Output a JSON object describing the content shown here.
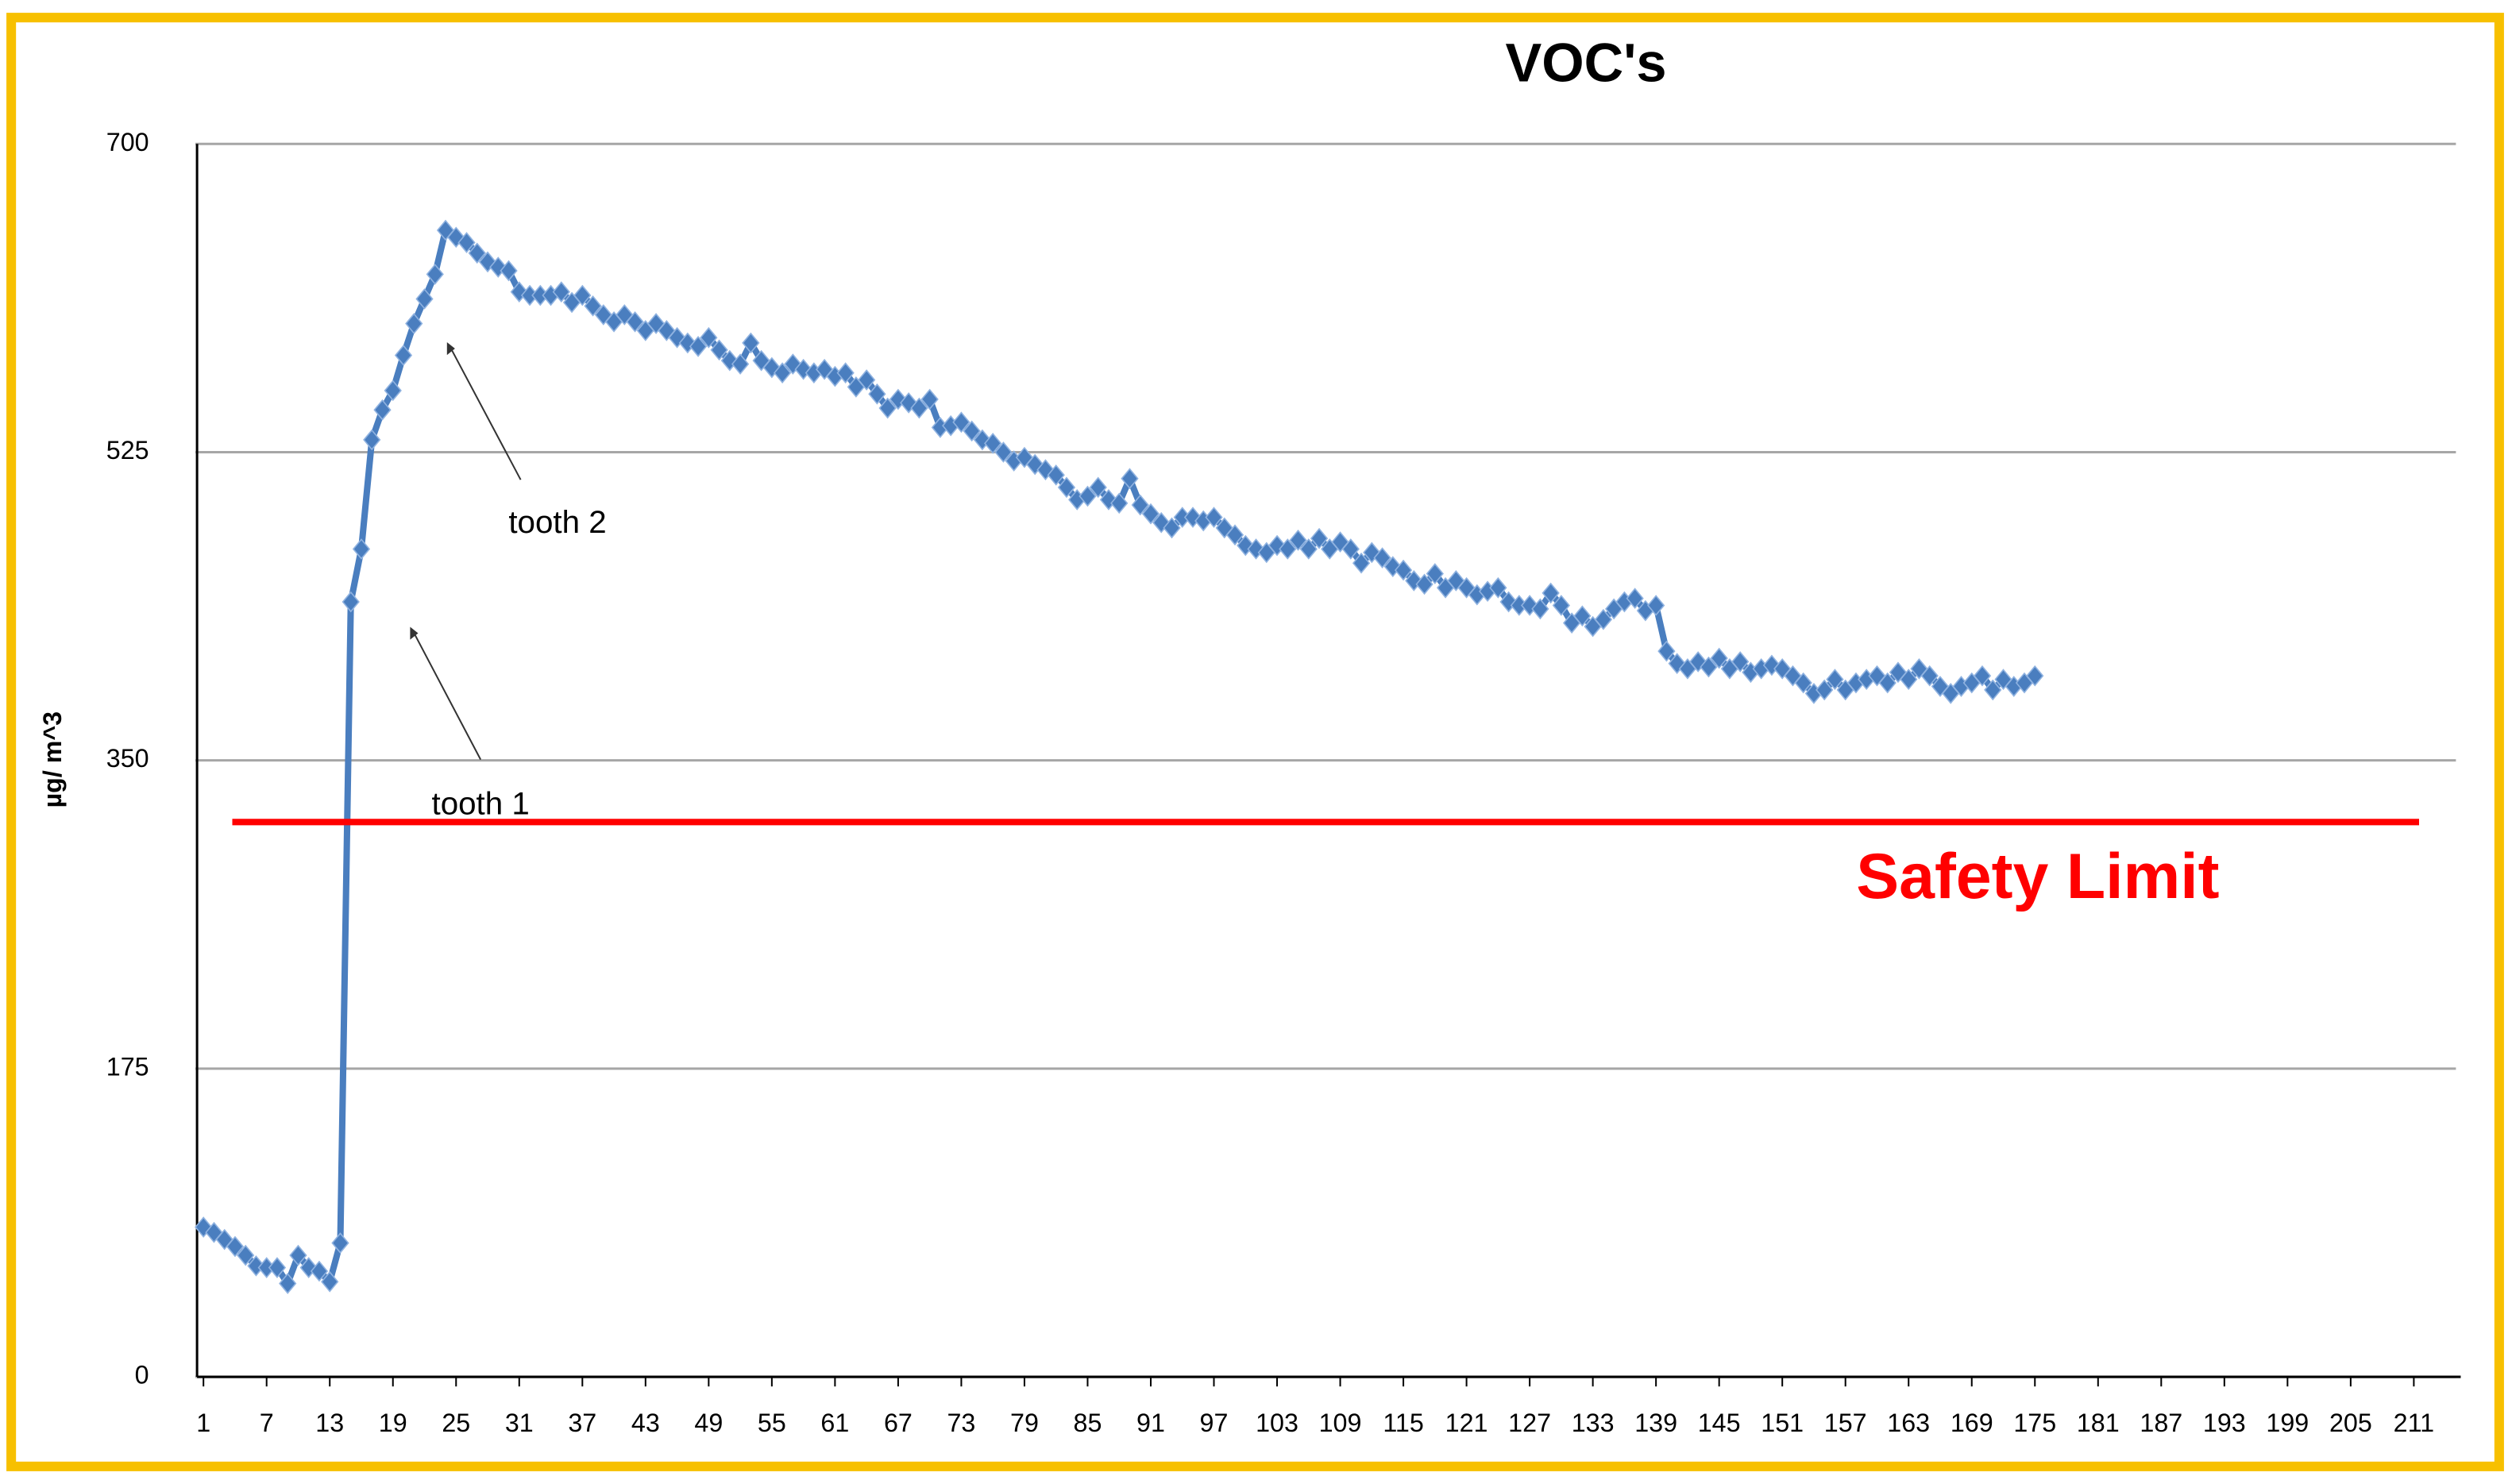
{
  "chart_data": {
    "type": "line",
    "title": "VOC's",
    "y_label": "µg/ m^3",
    "x": [
      1,
      2,
      3,
      4,
      5,
      6,
      7,
      8,
      9,
      10,
      11,
      12,
      13,
      14,
      15,
      16,
      17,
      18,
      19,
      20,
      21,
      22,
      23,
      24,
      25,
      26,
      27,
      28,
      29,
      30,
      31,
      32,
      33,
      34,
      35,
      36,
      37,
      38,
      39,
      40,
      41,
      42,
      43,
      44,
      45,
      46,
      47,
      48,
      49,
      50,
      51,
      52,
      53,
      54,
      55,
      56,
      57,
      58,
      59,
      60,
      61,
      62,
      63,
      64,
      65,
      66,
      67,
      68,
      69,
      70,
      71,
      72,
      73,
      74,
      75,
      76,
      77,
      78,
      79,
      80,
      81,
      82,
      83,
      84,
      85,
      86,
      87,
      88,
      89,
      90,
      91,
      92,
      93,
      94,
      95,
      96,
      97,
      98,
      99,
      100,
      101,
      102,
      103,
      104,
      105,
      106,
      107,
      108,
      109,
      110,
      111,
      112,
      113,
      114,
      115,
      116,
      117,
      118,
      119,
      120,
      121,
      122,
      123,
      124,
      125,
      126,
      127,
      128,
      129,
      130,
      131,
      132,
      133,
      134,
      135,
      136,
      137,
      138,
      139,
      140,
      141,
      142,
      143,
      144,
      145,
      146,
      147,
      148,
      149,
      150,
      151,
      152,
      153,
      154,
      155,
      156,
      157,
      158,
      159,
      160,
      161,
      162,
      163,
      164,
      165,
      166,
      167,
      168,
      169,
      170,
      171,
      172,
      173,
      174,
      175
    ],
    "series": [
      {
        "color": "#4a7ebf",
        "values": [
          85,
          82,
          78,
          74,
          69,
          63,
          62,
          62,
          53,
          69,
          62,
          60,
          54,
          76,
          440,
          470,
          532,
          549,
          560,
          580,
          598,
          612,
          626,
          651,
          647,
          644,
          638,
          633,
          630,
          628,
          616,
          614,
          614,
          614,
          616,
          610,
          614,
          608,
          603,
          599,
          603,
          599,
          594,
          598,
          594,
          590,
          587,
          585,
          590,
          583,
          577,
          575,
          587,
          577,
          573,
          570,
          575,
          572,
          570,
          572,
          568,
          570,
          562,
          566,
          558,
          550,
          555,
          553,
          550,
          555,
          539,
          540,
          542,
          537,
          532,
          530,
          525,
          520,
          522,
          518,
          515,
          512,
          505,
          498,
          500,
          505,
          498,
          496,
          510,
          495,
          490,
          485,
          482,
          488,
          488,
          486,
          488,
          482,
          478,
          472,
          470,
          468,
          472,
          470,
          475,
          470,
          476,
          470,
          474,
          470,
          462,
          468,
          465,
          460,
          458,
          452,
          450,
          456,
          448,
          452,
          448,
          444,
          446,
          448,
          440,
          438,
          438,
          436,
          445,
          438,
          428,
          432,
          426,
          430,
          436,
          440,
          442,
          435,
          438,
          412,
          405,
          402,
          406,
          403,
          408,
          402,
          406,
          400,
          402,
          404,
          402,
          398,
          394,
          388,
          390,
          396,
          390,
          394,
          396,
          398,
          394,
          400,
          396,
          402,
          398,
          392,
          388,
          392,
          394,
          398,
          390,
          396,
          392,
          394,
          398
        ]
      }
    ],
    "xlim": [
      1,
      215
    ],
    "xticks": [
      1,
      7,
      13,
      19,
      25,
      31,
      37,
      43,
      49,
      55,
      61,
      67,
      73,
      79,
      85,
      91,
      97,
      103,
      109,
      115,
      121,
      127,
      133,
      139,
      145,
      151,
      157,
      163,
      169,
      175,
      181,
      187,
      193,
      199,
      205,
      211
    ],
    "ylim": [
      0,
      700
    ],
    "yticks": [
      0,
      175,
      350,
      525,
      700
    ],
    "grid": true,
    "reference_line": {
      "value": 315,
      "label": "Safety Limit",
      "color": "#ff0000"
    },
    "annotations": [
      "tooth 1",
      "tooth 2"
    ]
  }
}
